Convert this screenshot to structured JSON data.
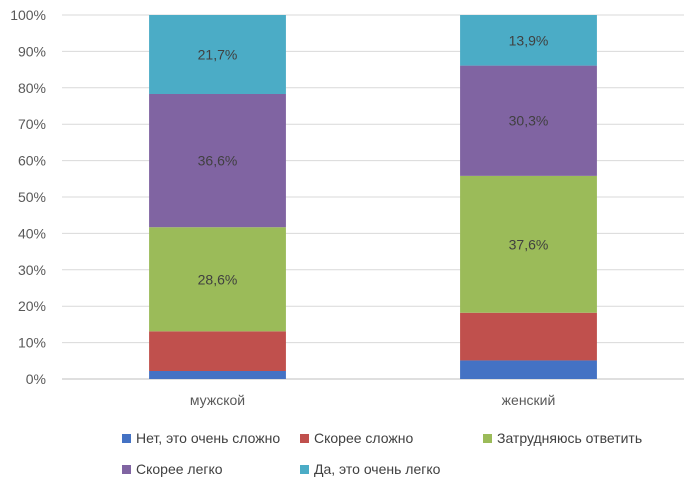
{
  "chart_data": {
    "type": "bar",
    "stacked": true,
    "percent": true,
    "title": "",
    "xlabel": "",
    "ylabel": "",
    "ylim": [
      0,
      100
    ],
    "yticks": [
      "0%",
      "10%",
      "20%",
      "30%",
      "40%",
      "50%",
      "60%",
      "70%",
      "80%",
      "90%",
      "100%"
    ],
    "grid": true,
    "legend_position": "bottom",
    "categories": [
      "мужской",
      "женский"
    ],
    "series": [
      {
        "name": "Нет, это очень сложно",
        "color": "#4472C4",
        "values": [
          2.2,
          5.1
        ],
        "labels": [
          "",
          ""
        ]
      },
      {
        "name": "Скорее сложно",
        "color": "#C0504D",
        "values": [
          10.9,
          13.1
        ],
        "labels": [
          "",
          ""
        ]
      },
      {
        "name": "Затрудняюсь ответить",
        "color": "#9BBB59",
        "values": [
          28.6,
          37.6
        ],
        "labels": [
          "28,6%",
          "37,6%"
        ]
      },
      {
        "name": "Скорее легко",
        "color": "#8064A2",
        "values": [
          36.6,
          30.3
        ],
        "labels": [
          "36,6%",
          "30,3%"
        ]
      },
      {
        "name": "Да, это очень легко",
        "color": "#4BACC6",
        "values": [
          21.7,
          13.9
        ],
        "labels": [
          "21,7%",
          "13,9%"
        ]
      }
    ]
  }
}
